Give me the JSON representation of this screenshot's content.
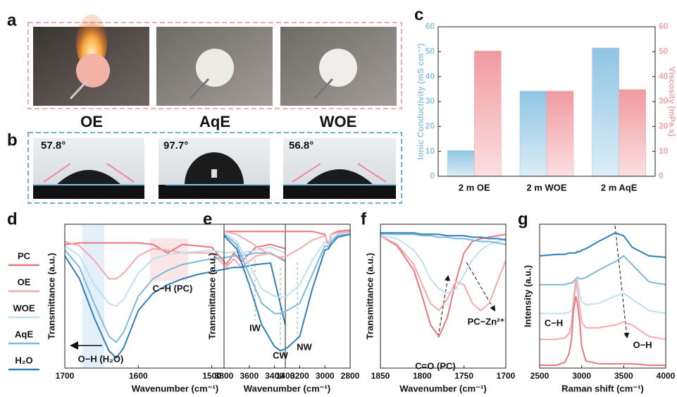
{
  "panel_a": {
    "label": "a",
    "samples": [
      "OE",
      "AqE",
      "WOE"
    ]
  },
  "panel_b": {
    "label": "b",
    "angles": [
      "57.8°",
      "97.7°",
      "56.8°"
    ]
  },
  "chart_data": [
    {
      "label": "c",
      "type": "bar",
      "categories": [
        "2 m OE",
        "2 m WOE",
        "2 m AqE"
      ],
      "ylabel": "Ionic Conductivity (mS cm⁻¹)",
      "y2label": "Viscosity (mPa s)",
      "ylim": [
        0,
        60
      ],
      "yticks": [
        0,
        10,
        20,
        30,
        40,
        50,
        60
      ],
      "y2lim": [
        0,
        60
      ],
      "y2ticks": [
        0,
        10,
        20,
        30,
        40,
        50,
        60
      ],
      "series": [
        {
          "color": "#8fc5e3",
          "values": [
            10.3,
            34.2,
            51.5
          ]
        },
        {
          "color": "#f2a3a8",
          "axis": "y2",
          "values": [
            50.3,
            34.2,
            34.8
          ]
        }
      ]
    },
    {
      "label": "d",
      "type": "line",
      "xlabel": "Wavenumber (cm⁻¹)",
      "ylabel": "Transmittance (a.u.)",
      "annotations": [
        "C−H (PC)",
        "O−H (H₂O)"
      ],
      "legend": "left",
      "xlim": [
        1700,
        1400
      ],
      "xticks": [
        1700,
        1600,
        1500,
        1400
      ],
      "ylim": [
        0,
        1
      ],
      "x": [
        1700,
        1680,
        1660,
        1640,
        1630,
        1620,
        1600,
        1580,
        1560,
        1540,
        1520,
        1500,
        1480,
        1470,
        1460,
        1440,
        1420,
        1400
      ],
      "series": [
        {
          "name": "PC",
          "color": "#e8767c",
          "values": [
            0.86,
            0.87,
            0.87,
            0.87,
            0.87,
            0.87,
            0.87,
            0.86,
            0.8,
            0.86,
            0.85,
            0.84,
            0.72,
            0.8,
            0.74,
            0.84,
            0.86,
            0.83
          ]
        },
        {
          "name": "OE",
          "color": "#f5a9ab",
          "values": [
            0.88,
            0.85,
            0.75,
            0.62,
            0.62,
            0.66,
            0.78,
            0.83,
            0.82,
            0.8,
            0.8,
            0.8,
            0.7,
            0.76,
            0.7,
            0.78,
            0.8,
            0.75
          ]
        },
        {
          "name": "WOE",
          "color": "#bfe0ef",
          "values": [
            0.85,
            0.78,
            0.58,
            0.45,
            0.43,
            0.48,
            0.66,
            0.76,
            0.79,
            0.8,
            0.81,
            0.82,
            0.8,
            0.81,
            0.8,
            0.82,
            0.84,
            0.8
          ]
        },
        {
          "name": "AqE",
          "color": "#7db9dc",
          "values": [
            0.82,
            0.7,
            0.45,
            0.22,
            0.18,
            0.25,
            0.5,
            0.62,
            0.68,
            0.72,
            0.74,
            0.76,
            0.77,
            0.78,
            0.78,
            0.8,
            0.8,
            0.74
          ]
        },
        {
          "name": "H₂O",
          "color": "#2f7fb8",
          "values": [
            0.78,
            0.62,
            0.35,
            0.12,
            0.07,
            0.14,
            0.4,
            0.52,
            0.58,
            0.62,
            0.65,
            0.67,
            0.69,
            0.7,
            0.7,
            0.72,
            0.73,
            0.3
          ]
        }
      ]
    },
    {
      "label": "e",
      "type": "line",
      "xlabel": "Wavenumber (cm⁻¹)",
      "ylabel": "Transmittance (a.u.)",
      "annotations": [
        "IW",
        "CW",
        "NW"
      ],
      "xlim": [
        3800,
        2800
      ],
      "xticks": [
        3800,
        3600,
        3400,
        3200,
        3000,
        2800
      ],
      "ylim": [
        0,
        1
      ],
      "x": [
        3800,
        3700,
        3600,
        3500,
        3400,
        3350,
        3300,
        3200,
        3100,
        3000,
        2970,
        2950,
        2900,
        2800
      ],
      "series": [
        {
          "color": "#e8767c",
          "values": [
            0.95,
            0.95,
            0.95,
            0.95,
            0.95,
            0.95,
            0.95,
            0.95,
            0.95,
            0.93,
            0.84,
            0.93,
            0.95,
            0.96
          ]
        },
        {
          "color": "#f5a9ab",
          "values": [
            0.95,
            0.93,
            0.88,
            0.82,
            0.78,
            0.77,
            0.78,
            0.83,
            0.89,
            0.92,
            0.86,
            0.93,
            0.94,
            0.95
          ]
        },
        {
          "color": "#bfe0ef",
          "values": [
            0.94,
            0.88,
            0.72,
            0.55,
            0.5,
            0.49,
            0.5,
            0.58,
            0.75,
            0.88,
            0.85,
            0.9,
            0.93,
            0.94
          ]
        },
        {
          "color": "#7db9dc",
          "values": [
            0.93,
            0.86,
            0.65,
            0.45,
            0.38,
            0.38,
            0.4,
            0.45,
            0.65,
            0.85,
            0.84,
            0.88,
            0.92,
            0.93
          ]
        },
        {
          "color": "#2f7fb8",
          "values": [
            0.92,
            0.83,
            0.58,
            0.3,
            0.15,
            0.12,
            0.14,
            0.22,
            0.55,
            0.82,
            0.83,
            0.86,
            0.91,
            0.93
          ]
        }
      ]
    },
    {
      "label": "f",
      "type": "line",
      "xlabel": "Wavenumber (cm⁻¹)",
      "ylabel": "Transmittance (a.u.)",
      "annotations": [
        "C=O (PC)",
        "PC−Zn²⁺"
      ],
      "xlim": [
        1850,
        1700
      ],
      "xticks": [
        1850,
        1800,
        1750,
        1700
      ],
      "ylim": [
        0,
        1
      ],
      "x": [
        1850,
        1830,
        1810,
        1800,
        1790,
        1780,
        1770,
        1760,
        1750,
        1740,
        1730,
        1720,
        1710,
        1700
      ],
      "series": [
        {
          "color": "#e8767c",
          "values": [
            0.92,
            0.85,
            0.68,
            0.5,
            0.3,
            0.22,
            0.35,
            0.6,
            0.8,
            0.88,
            0.9,
            0.91,
            0.92,
            0.93
          ]
        },
        {
          "color": "#f5a9ab",
          "values": [
            0.92,
            0.86,
            0.72,
            0.58,
            0.45,
            0.4,
            0.48,
            0.6,
            0.58,
            0.45,
            0.4,
            0.45,
            0.6,
            0.75
          ]
        },
        {
          "color": "#bfe0ef",
          "values": [
            0.92,
            0.9,
            0.82,
            0.74,
            0.62,
            0.55,
            0.52,
            0.55,
            0.65,
            0.75,
            0.82,
            0.86,
            0.88,
            0.9
          ]
        },
        {
          "color": "#7db9dc",
          "values": [
            0.93,
            0.93,
            0.93,
            0.92,
            0.92,
            0.91,
            0.91,
            0.9,
            0.9,
            0.89,
            0.88,
            0.88,
            0.87,
            0.86
          ]
        },
        {
          "color": "#2f7fb8",
          "values": [
            0.94,
            0.94,
            0.94,
            0.93,
            0.93,
            0.93,
            0.92,
            0.92,
            0.92,
            0.91,
            0.91,
            0.9,
            0.9,
            0.89
          ]
        }
      ]
    },
    {
      "label": "g",
      "type": "line",
      "xlabel": "Raman shift (cm⁻¹)",
      "ylabel": "Intensity (a.u.)",
      "annotations": [
        "C−H",
        "O−H"
      ],
      "xlim": [
        2500,
        4000
      ],
      "xticks": [
        2500,
        3000,
        3500,
        4000
      ],
      "ylim": [
        0,
        1
      ],
      "x": [
        2500,
        2700,
        2800,
        2850,
        2880,
        2900,
        2930,
        2950,
        2980,
        3000,
        3050,
        3200,
        3400,
        3500,
        3600,
        3800,
        4000
      ],
      "series": [
        {
          "color": "#2f7fb8",
          "values": [
            0.78,
            0.79,
            0.79,
            0.8,
            0.8,
            0.8,
            0.8,
            0.81,
            0.81,
            0.82,
            0.83,
            0.88,
            0.94,
            0.92,
            0.84,
            0.78,
            0.77
          ]
        },
        {
          "color": "#7db9dc",
          "values": [
            0.58,
            0.58,
            0.58,
            0.59,
            0.59,
            0.6,
            0.62,
            0.63,
            0.62,
            0.62,
            0.63,
            0.68,
            0.74,
            0.78,
            0.72,
            0.6,
            0.58
          ]
        },
        {
          "color": "#bfe0ef",
          "values": [
            0.38,
            0.38,
            0.38,
            0.39,
            0.4,
            0.44,
            0.55,
            0.62,
            0.5,
            0.46,
            0.44,
            0.45,
            0.5,
            0.52,
            0.48,
            0.4,
            0.38
          ]
        },
        {
          "color": "#f5a9ab",
          "values": [
            0.2,
            0.2,
            0.21,
            0.24,
            0.3,
            0.45,
            0.62,
            0.55,
            0.4,
            0.32,
            0.28,
            0.28,
            0.3,
            0.32,
            0.3,
            0.22,
            0.2
          ]
        },
        {
          "color": "#e8767c",
          "values": [
            0.02,
            0.02,
            0.04,
            0.1,
            0.2,
            0.38,
            0.5,
            0.45,
            0.3,
            0.15,
            0.05,
            0.03,
            0.03,
            0.03,
            0.03,
            0.02,
            0.02
          ]
        }
      ]
    }
  ]
}
